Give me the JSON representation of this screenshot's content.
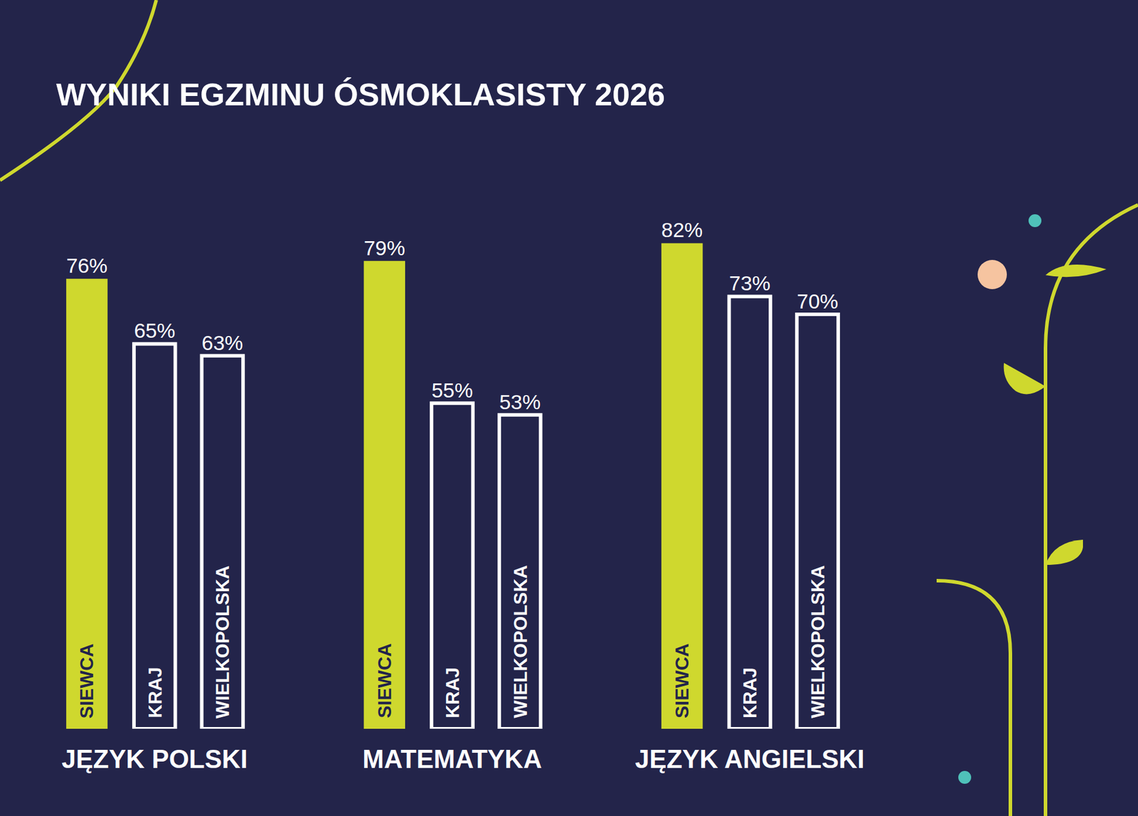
{
  "chart_data": {
    "type": "bar",
    "title": "WYNIKI EGZMINU ÓSMOKLASISTY 2026",
    "categories": [
      "JĘZYK POLSKI",
      "MATEMATYKA",
      "JĘZYK ANGIELSKI"
    ],
    "series": [
      {
        "name": "SIEWCA",
        "color": "#cfd82e",
        "marker": "filled",
        "values": [
          76,
          79,
          82
        ],
        "value_labels": [
          "76%",
          "79%",
          "82%"
        ]
      },
      {
        "name": "KRAJ",
        "color": "#ffffff",
        "marker": "outline",
        "values": [
          65,
          55,
          73
        ],
        "value_labels": [
          "65%",
          "55%",
          "73%"
        ]
      },
      {
        "name": "WIELKOPOLSKA",
        "color": "#ffffff",
        "marker": "outline",
        "values": [
          63,
          53,
          70
        ],
        "value_labels": [
          "63%",
          "53%",
          "70%"
        ]
      }
    ],
    "ylim": [
      0,
      95
    ],
    "yticks": [],
    "grid": false,
    "data_labels": true,
    "tick_labels": "x"
  }
}
